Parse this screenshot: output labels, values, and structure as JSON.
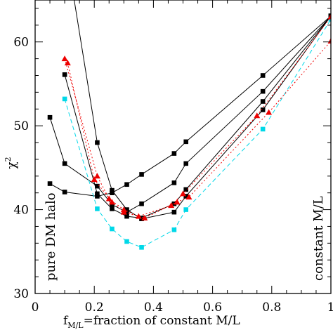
{
  "chart_data": {
    "type": "line",
    "xlabel": "f",
    "xlabel_sub": "M/L",
    "xlabel_rest": "=fraction of constant M/L",
    "ylabel": "χ",
    "ylabel_sup": "2",
    "xlim": [
      0,
      1
    ],
    "ylim": [
      30,
      65
    ],
    "xticks": [
      0,
      0.2,
      0.4,
      0.6,
      0.8,
      1
    ],
    "xtick_labels": [
      "0",
      "0.2",
      "0.4",
      "0.6",
      "0.8",
      "1"
    ],
    "yticks": [
      30,
      40,
      50,
      60
    ],
    "ytick_labels": [
      "30",
      "40",
      "50",
      "60"
    ],
    "annotations": {
      "left": "pure DM halo",
      "right": "constant M/L"
    },
    "grid": false,
    "legend": "none",
    "series": [
      {
        "style": "solid-black-square",
        "color": "#000000",
        "x": [
          0.1,
          0.21,
          0.26,
          0.31,
          0.36,
          0.47,
          0.51,
          0.77,
          1.0
        ],
        "y": [
          72.0,
          48.0,
          42.3,
          40.0,
          38.9,
          39.7,
          41.6,
          51.9,
          63.1
        ]
      },
      {
        "style": "solid-black-square",
        "color": "#000000",
        "x": [
          0.1,
          0.21,
          0.26,
          0.31,
          0.36,
          0.47,
          0.51,
          0.77,
          1.0
        ],
        "y": [
          56.1,
          41.9,
          40.1,
          39.2,
          39.0,
          40.7,
          42.4,
          52.9,
          63.1
        ]
      },
      {
        "style": "solid-black-square",
        "color": "#000000",
        "x": [
          0.05,
          0.1,
          0.21,
          0.26,
          0.31,
          0.36,
          0.47,
          0.51,
          0.77,
          1.0
        ],
        "y": [
          51.0,
          45.5,
          42.8,
          40.6,
          39.7,
          40.7,
          43.2,
          45.5,
          54.1,
          63.1
        ]
      },
      {
        "style": "solid-black-square",
        "color": "#000000",
        "x": [
          0.05,
          0.1,
          0.21,
          0.26,
          0.31,
          0.36,
          0.47,
          0.51,
          0.77,
          1.0
        ],
        "y": [
          43.1,
          42.1,
          41.6,
          42.0,
          43.0,
          44.2,
          46.7,
          48.1,
          56.0,
          63.1
        ]
      },
      {
        "style": "dashed-cyan-square",
        "color": "#00d8e8",
        "x": [
          0.1,
          0.21,
          0.26,
          0.31,
          0.36,
          0.47,
          0.51,
          0.77,
          1.0
        ],
        "y": [
          53.2,
          40.1,
          37.7,
          36.2,
          35.5,
          37.6,
          40.0,
          49.6,
          62.7
        ]
      },
      {
        "style": "dotted-red-triangle",
        "color": "#ee0000",
        "x": [
          0.1,
          0.21,
          0.25,
          0.3,
          0.35,
          0.46,
          0.5,
          0.75,
          1.0
        ],
        "y": [
          58.0,
          44.0,
          41.3,
          40.0,
          39.2,
          40.5,
          41.9,
          51.2,
          63.0
        ]
      },
      {
        "style": "dotted-red-triangle",
        "color": "#ee0000",
        "x": [
          0.11,
          0.2,
          0.26,
          0.3,
          0.37,
          0.48,
          0.52,
          0.79,
          1.0
        ],
        "y": [
          57.5,
          43.6,
          40.9,
          39.7,
          39.0,
          40.9,
          41.5,
          51.6,
          60.1
        ]
      }
    ]
  }
}
